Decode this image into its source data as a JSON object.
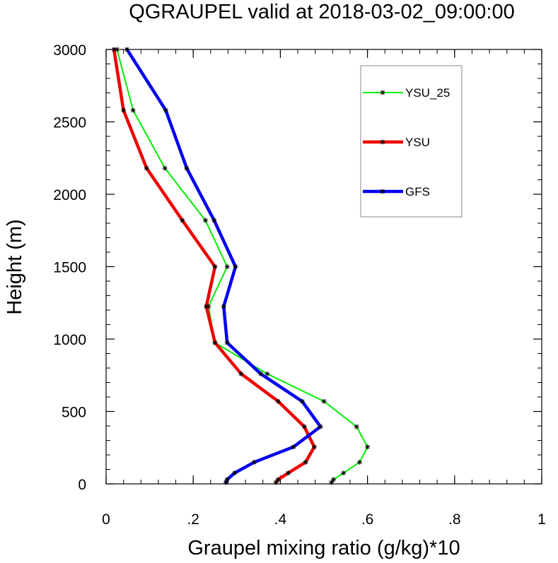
{
  "chart_data": {
    "type": "line",
    "title": "QGRAUPEL valid at 2018-03-02_09:00:00",
    "xlabel": "Graupel mixing ratio (g/kg)*10",
    "ylabel": "Height (m)",
    "xlim": [
      0,
      1
    ],
    "ylim": [
      0,
      3000
    ],
    "xticks": [
      0,
      0.2,
      0.4,
      0.6,
      0.8,
      1
    ],
    "xtick_labels": [
      "0",
      ".2",
      ".4",
      ".6",
      ".8",
      "1"
    ],
    "yticks": [
      0,
      500,
      1000,
      1500,
      2000,
      2500,
      3000
    ],
    "ytick_labels": [
      "0",
      "500",
      "1000",
      "1500",
      "2000",
      "2500",
      "3000"
    ],
    "grid": false,
    "legend_position": "top-right",
    "series": [
      {
        "name": "YSU_25",
        "color": "#00ee00",
        "width": 2,
        "x": [
          0.517,
          0.522,
          0.545,
          0.582,
          0.6,
          0.575,
          0.5,
          0.37,
          0.25,
          0.235,
          0.278,
          0.228,
          0.135,
          0.062,
          0.025
        ],
        "y": [
          10,
          30,
          75,
          150,
          255,
          395,
          570,
          760,
          975,
          1225,
          1500,
          1820,
          2180,
          2580,
          3000
        ]
      },
      {
        "name": "YSU",
        "color": "#ee0000",
        "width": 4.5,
        "x": [
          0.39,
          0.395,
          0.418,
          0.458,
          0.478,
          0.455,
          0.395,
          0.31,
          0.25,
          0.23,
          0.25,
          0.175,
          0.093,
          0.04,
          0.018
        ],
        "y": [
          10,
          30,
          75,
          150,
          255,
          395,
          570,
          760,
          975,
          1225,
          1500,
          1820,
          2180,
          2580,
          3000
        ]
      },
      {
        "name": "GFS",
        "color": "#0000ee",
        "width": 4.5,
        "x": [
          0.275,
          0.278,
          0.295,
          0.34,
          0.43,
          0.492,
          0.45,
          0.355,
          0.278,
          0.27,
          0.297,
          0.248,
          0.185,
          0.137,
          0.048
        ],
        "y": [
          10,
          30,
          75,
          150,
          255,
          395,
          570,
          760,
          975,
          1225,
          1500,
          1820,
          2180,
          2580,
          3000
        ]
      }
    ]
  }
}
